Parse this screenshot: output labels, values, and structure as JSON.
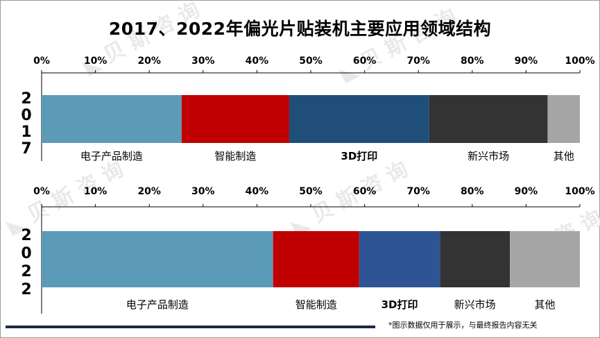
{
  "footnote": "*图示数据仅用于展示，与最终报告内容无关",
  "chart_data": {
    "type": "bar",
    "title": "2017、2022年偏光片贴装机主要应用领域结构",
    "xlim": [
      0,
      100
    ],
    "tick_labels": [
      "0%",
      "10%",
      "20%",
      "30%",
      "40%",
      "50%",
      "60%",
      "70%",
      "80%",
      "90%",
      "100%"
    ],
    "grid": false,
    "categories": [
      "电子产品制造",
      "智能制造",
      "3D打印",
      "新兴市场",
      "其他"
    ],
    "panels": [
      {
        "year": "2017",
        "segments": [
          {
            "name": "电子产品制造",
            "value": 26.0,
            "color": "#5b9bb8"
          },
          {
            "name": "智能制造",
            "value": 20.0,
            "color": "#c00000"
          },
          {
            "name": "3D打印",
            "value": 26.0,
            "color": "#1f4e79"
          },
          {
            "name": "新兴市场",
            "value": 22.0,
            "color": "#333333"
          },
          {
            "name": "其他",
            "value": 6.0,
            "color": "#a6a6a6"
          }
        ]
      },
      {
        "year": "2022",
        "segments": [
          {
            "name": "电子产品制造",
            "value": 43.0,
            "color": "#5b9bb8"
          },
          {
            "name": "智能制造",
            "value": 16.0,
            "color": "#c00000"
          },
          {
            "name": "3D打印",
            "value": 15.0,
            "color": "#2e5496"
          },
          {
            "name": "新兴市场",
            "value": 13.0,
            "color": "#333333"
          },
          {
            "name": "其他",
            "value": 13.0,
            "color": "#a6a6a6"
          }
        ]
      }
    ]
  }
}
